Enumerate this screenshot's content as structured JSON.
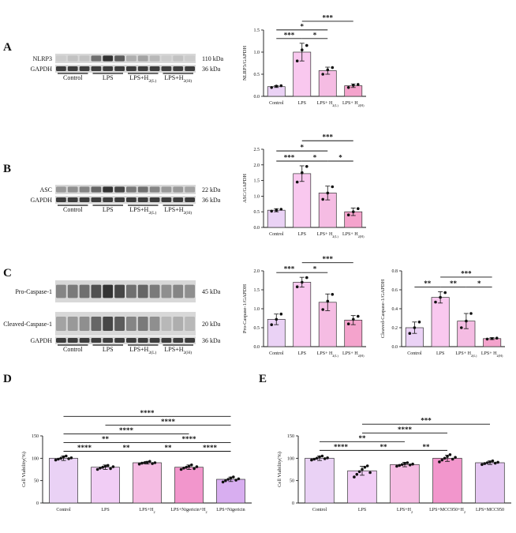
{
  "figure": {
    "panels": [
      "A",
      "B",
      "C",
      "D",
      "E"
    ],
    "blots": [
      {
        "panel": "A",
        "rows": [
          {
            "label": "NLRP3",
            "size": "110 kDa",
            "intensities": [
              0.15,
              0.2,
              0.2,
              0.6,
              0.9,
              0.7,
              0.3,
              0.35,
              0.25,
              0.15,
              0.2,
              0.15
            ]
          },
          {
            "label": "GAPDH",
            "size": "36 kDa",
            "intensities": [
              0.85,
              0.85,
              0.85,
              0.85,
              0.85,
              0.85,
              0.85,
              0.85,
              0.85,
              0.85,
              0.85,
              0.85
            ]
          }
        ],
        "groups": [
          "Control",
          "LPS",
          "LPS+H2(L)",
          "LPS+H2(H)"
        ]
      },
      {
        "panel": "B",
        "rows": [
          {
            "label": "ASC",
            "size": "22 kDa",
            "intensities": [
              0.4,
              0.45,
              0.5,
              0.65,
              0.9,
              0.8,
              0.55,
              0.6,
              0.5,
              0.4,
              0.4,
              0.35
            ]
          },
          {
            "label": "GAPDH",
            "size": "36 kDa",
            "intensities": [
              0.85,
              0.85,
              0.85,
              0.85,
              0.85,
              0.85,
              0.85,
              0.85,
              0.85,
              0.85,
              0.85,
              0.85
            ]
          }
        ],
        "groups": [
          "Control",
          "LPS",
          "LPS+H2(L)",
          "LPS+H2(H)"
        ]
      },
      {
        "panel": "C",
        "rows": [
          {
            "label": "Pro-Caspase-1",
            "size": "45 kDa",
            "intensities": [
              0.5,
              0.55,
              0.6,
              0.75,
              0.9,
              0.8,
              0.6,
              0.65,
              0.55,
              0.45,
              0.5,
              0.45
            ]
          },
          {
            "label": "Cleaved-Caspase-1",
            "size": "20 kDa",
            "intensities": [
              0.35,
              0.4,
              0.45,
              0.65,
              0.8,
              0.7,
              0.5,
              0.55,
              0.45,
              0.25,
              0.3,
              0.25
            ]
          },
          {
            "label": "GAPDH",
            "size": "36 kDa",
            "intensities": [
              0.85,
              0.85,
              0.85,
              0.85,
              0.85,
              0.85,
              0.85,
              0.85,
              0.85,
              0.85,
              0.85,
              0.85
            ]
          }
        ],
        "groups": [
          "Control",
          "LPS",
          "LPS+H2(L)",
          "LPS+H2(H)"
        ]
      }
    ]
  },
  "chart_data": [
    {
      "id": "A",
      "type": "bar",
      "categories": [
        "Control",
        "LPS",
        "LPS+ H2(L)",
        "LPS+ H2(H)"
      ],
      "values": [
        0.22,
        1.0,
        0.58,
        0.24
      ],
      "errors": [
        0.02,
        0.2,
        0.08,
        0.04
      ],
      "points": [
        [
          0.2,
          0.23,
          0.24
        ],
        [
          0.8,
          1.05,
          1.15
        ],
        [
          0.5,
          0.6,
          0.65
        ],
        [
          0.2,
          0.25,
          0.27
        ]
      ],
      "colors": [
        "#ead2f5",
        "#f9c8ef",
        "#f5bce3",
        "#f4a3cc"
      ],
      "ylabel": "NLRP3/GAPDH",
      "ylim": [
        0,
        1.5
      ],
      "yticks": [
        "0.0",
        "0.5",
        "1.0",
        "1.5"
      ],
      "sig": [
        {
          "from": 0,
          "to": 1,
          "label": "***"
        },
        {
          "from": 1,
          "to": 2,
          "label": "*"
        },
        {
          "from": 0,
          "to": 2,
          "label": "*"
        },
        {
          "from": 1,
          "to": 3,
          "label": "***"
        }
      ]
    },
    {
      "id": "B",
      "type": "bar",
      "categories": [
        "Control",
        "LPS",
        "LPS+ H2(L)",
        "LPS+ H2(H)"
      ],
      "values": [
        0.55,
        1.72,
        1.1,
        0.5
      ],
      "errors": [
        0.05,
        0.25,
        0.22,
        0.12
      ],
      "points": [
        [
          0.52,
          0.55,
          0.58
        ],
        [
          1.45,
          1.75,
          1.95
        ],
        [
          0.9,
          1.1,
          1.3
        ],
        [
          0.4,
          0.5,
          0.6
        ]
      ],
      "colors": [
        "#ead2f5",
        "#f9c8ef",
        "#f5bce3",
        "#f4a3cc"
      ],
      "ylabel": "ASC/GAPDH",
      "ylim": [
        0,
        2.5
      ],
      "yticks": [
        "0.0",
        "0.5",
        "1.0",
        "1.5",
        "2.0",
        "2.5"
      ],
      "sig": [
        {
          "from": 0,
          "to": 1,
          "label": "***"
        },
        {
          "from": 1,
          "to": 2,
          "label": "*"
        },
        {
          "from": 2,
          "to": 3,
          "label": "*"
        },
        {
          "from": 0,
          "to": 2,
          "label": "*"
        },
        {
          "from": 1,
          "to": 3,
          "label": "***"
        }
      ]
    },
    {
      "id": "C1",
      "type": "bar",
      "categories": [
        "Control",
        "LPS",
        "LPS+ H2(L)",
        "LPS+ H2(H)"
      ],
      "values": [
        0.72,
        1.7,
        1.17,
        0.7
      ],
      "errors": [
        0.14,
        0.13,
        0.22,
        0.12
      ],
      "points": [
        [
          0.58,
          0.72,
          0.86
        ],
        [
          1.58,
          1.7,
          1.82
        ],
        [
          0.98,
          1.2,
          1.38
        ],
        [
          0.6,
          0.72,
          0.8
        ]
      ],
      "colors": [
        "#ead2f5",
        "#f9c8ef",
        "#f5bce3",
        "#f4a3cc"
      ],
      "ylabel": "Pro-Caspase-1/GAPDH",
      "ylim": [
        0,
        2.0
      ],
      "yticks": [
        "0.0",
        "0.5",
        "1.0",
        "1.5",
        "2.0"
      ],
      "sig": [
        {
          "from": 0,
          "to": 1,
          "label": "***"
        },
        {
          "from": 1,
          "to": 2,
          "label": "*"
        },
        {
          "from": 1,
          "to": 3,
          "label": "***"
        }
      ]
    },
    {
      "id": "C2",
      "type": "bar",
      "categories": [
        "Control",
        "LPS",
        "LPS+ H2(L)",
        "LPS+ H2(H)"
      ],
      "values": [
        0.2,
        0.52,
        0.27,
        0.085
      ],
      "errors": [
        0.06,
        0.06,
        0.08,
        0.01
      ],
      "points": [
        [
          0.14,
          0.2,
          0.26
        ],
        [
          0.47,
          0.52,
          0.57
        ],
        [
          0.2,
          0.27,
          0.35
        ],
        [
          0.08,
          0.085,
          0.09
        ]
      ],
      "colors": [
        "#ead2f5",
        "#f9c8ef",
        "#f5bce3",
        "#f4a3cc"
      ],
      "ylabel": "Cleaved-Caspase-1/GAPDH",
      "ylim": [
        0,
        0.8
      ],
      "yticks": [
        "0.0",
        "0.2",
        "0.4",
        "0.6",
        "0.8"
      ],
      "sig": [
        {
          "from": 0,
          "to": 1,
          "label": "**"
        },
        {
          "from": 1,
          "to": 2,
          "label": "**"
        },
        {
          "from": 2,
          "to": 3,
          "label": "*"
        },
        {
          "from": 1,
          "to": 3,
          "label": "***"
        }
      ]
    },
    {
      "id": "D",
      "type": "bar",
      "categories": [
        "Control",
        "LPS",
        "LPS+H2",
        "LPS+Nigericin+H2",
        "LPS+Nigericin"
      ],
      "values": [
        100,
        80,
        90,
        80,
        53
      ],
      "errors": [
        5,
        5,
        3,
        5,
        5
      ],
      "points": [
        [
          96,
          98,
          100,
          103,
          105,
          99,
          101
        ],
        [
          75,
          78,
          80,
          82,
          84,
          77,
          81
        ],
        [
          87,
          89,
          90,
          91,
          93,
          88,
          90
        ],
        [
          75,
          78,
          80,
          82,
          85,
          77,
          81
        ],
        [
          47,
          50,
          53,
          56,
          58,
          51,
          54
        ]
      ],
      "colors": [
        "#ead2f5",
        "#f1cdf5",
        "#f5bce3",
        "#f296cc",
        "#d8aef0"
      ],
      "ylabel": "Cell Viability(%)",
      "ylim": [
        0,
        150
      ],
      "yticks": [
        "0",
        "50",
        "100",
        "150"
      ],
      "sig": [
        {
          "from": 0,
          "to": 1,
          "label": "****"
        },
        {
          "from": 1,
          "to": 2,
          "label": "**"
        },
        {
          "from": 2,
          "to": 3,
          "label": "**"
        },
        {
          "from": 3,
          "to": 4,
          "label": "****"
        },
        {
          "from": 0,
          "to": 2,
          "label": "**"
        },
        {
          "from": 2,
          "to": 4,
          "label": "****"
        },
        {
          "from": 0,
          "to": 3,
          "label": "****"
        },
        {
          "from": 1,
          "to": 4,
          "label": "****"
        },
        {
          "from": 0,
          "to": 4,
          "label": "****"
        }
      ]
    },
    {
      "id": "E",
      "type": "bar",
      "categories": [
        "Control",
        "LPS",
        "LPS+H2",
        "LPS+MCC950+H2",
        "LPS+MCC950"
      ],
      "values": [
        100,
        72,
        86,
        100,
        90
      ],
      "errors": [
        5,
        10,
        5,
        7,
        4
      ],
      "points": [
        [
          96,
          98,
          100,
          103,
          105,
          99,
          101
        ],
        [
          58,
          64,
          70,
          75,
          80,
          83,
          68
        ],
        [
          82,
          84,
          86,
          88,
          90,
          85,
          87
        ],
        [
          92,
          96,
          100,
          104,
          108,
          98,
          102
        ],
        [
          86,
          88,
          90,
          92,
          94,
          89,
          91
        ]
      ],
      "colors": [
        "#ead2f5",
        "#f1cdf5",
        "#f5bce3",
        "#f296cc",
        "#e5c7f2"
      ],
      "ylabel": "Cell Viability(%)",
      "ylim": [
        0,
        150
      ],
      "yticks": [
        "0",
        "50",
        "100",
        "150"
      ],
      "sig": [
        {
          "from": 0,
          "to": 1,
          "label": "****"
        },
        {
          "from": 1,
          "to": 2,
          "label": "**"
        },
        {
          "from": 2,
          "to": 3,
          "label": "**"
        },
        {
          "from": 0,
          "to": 2,
          "label": "**"
        },
        {
          "from": 1,
          "to": 3,
          "label": "****"
        },
        {
          "from": 1,
          "to": 4,
          "label": "***"
        }
      ]
    }
  ]
}
